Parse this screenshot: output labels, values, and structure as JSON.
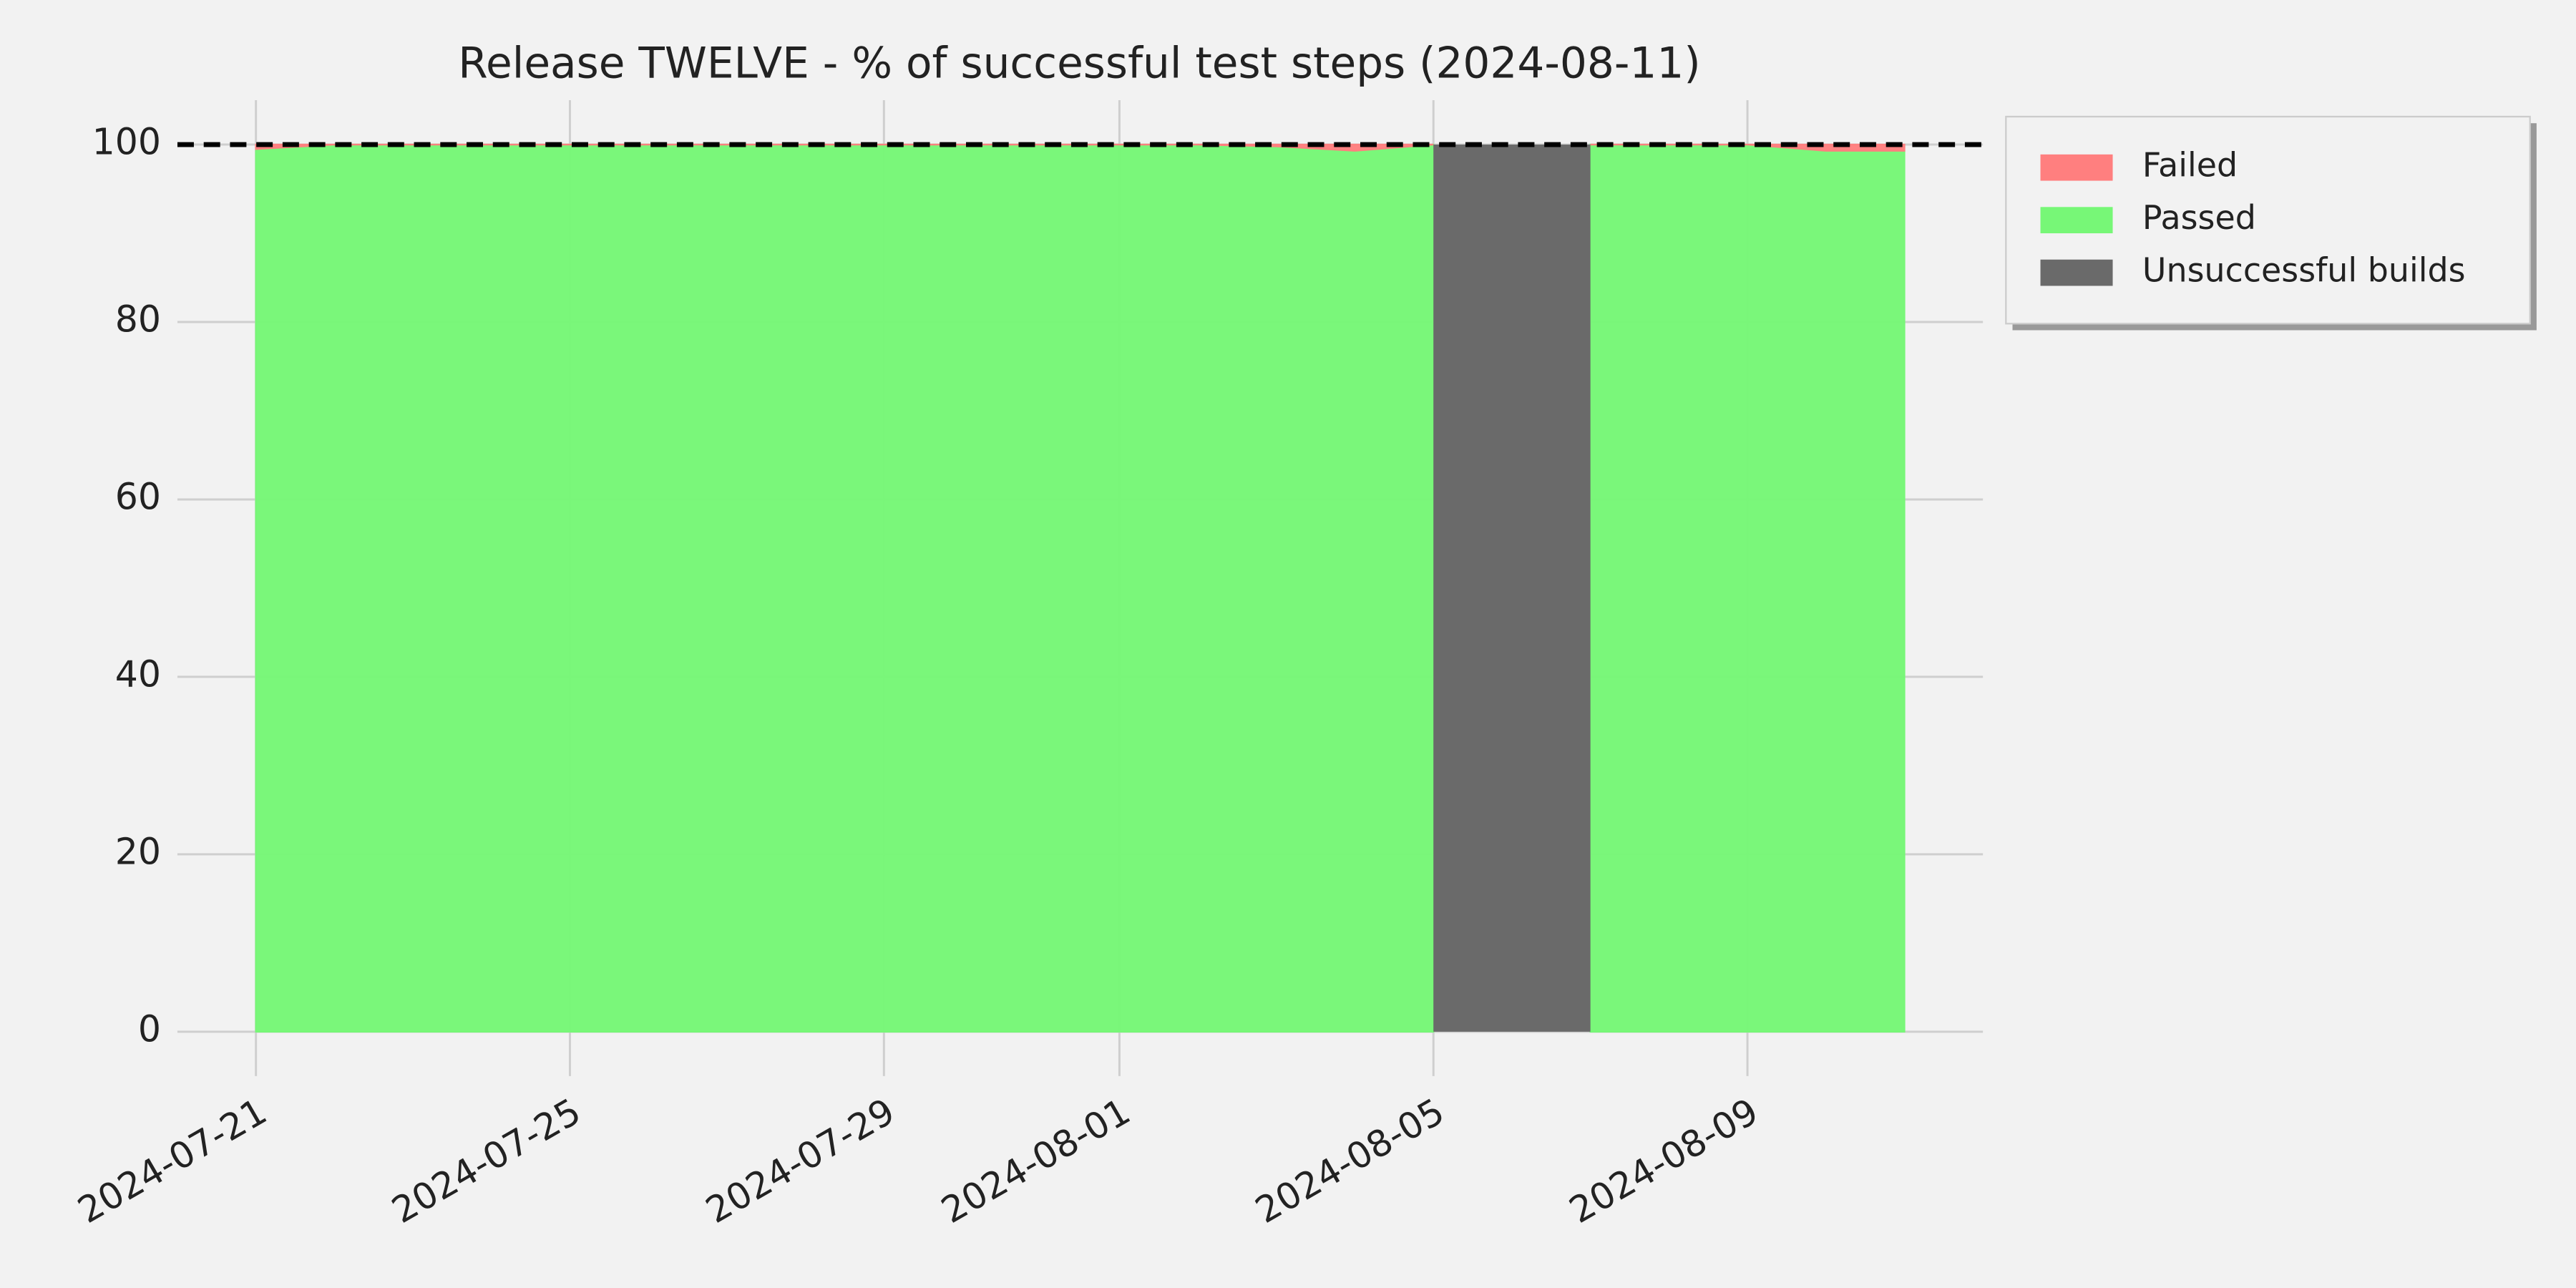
{
  "chart_data": {
    "type": "area",
    "title": "Release TWELVE - % of successful test steps (2024-08-11)",
    "x": [
      "2024-07-21",
      "2024-07-22",
      "2024-07-23",
      "2024-07-24",
      "2024-07-25",
      "2024-07-26",
      "2024-07-27",
      "2024-07-28",
      "2024-07-29",
      "2024-07-30",
      "2024-07-31",
      "2024-08-01",
      "2024-08-02",
      "2024-08-03",
      "2024-08-04",
      "2024-08-05",
      "2024-08-06",
      "2024-08-07",
      "2024-08-08",
      "2024-08-09",
      "2024-08-10",
      "2024-08-11"
    ],
    "series": [
      {
        "name": "Passed",
        "color": "#77f777",
        "values": [
          99.5,
          100,
          100,
          100,
          100,
          100,
          100,
          100,
          100,
          100,
          100,
          100,
          100,
          99.8,
          99.3,
          100,
          null,
          100,
          100,
          100,
          99.3,
          99.3
        ]
      },
      {
        "name": "Failed",
        "color": "#ff7f7f",
        "values": [
          0.5,
          0,
          0,
          0,
          0,
          0,
          0,
          0,
          0,
          0,
          0,
          0,
          0,
          0.2,
          0.7,
          0,
          null,
          0,
          0,
          0,
          0.7,
          0.7
        ]
      }
    ],
    "unsuccessful_builds": {
      "name": "Unsuccessful builds",
      "color": "#6a6a6a",
      "start": "2024-08-05",
      "end": "2024-08-07",
      "value": 100
    },
    "reference_line": {
      "value": 100,
      "style": "dashed"
    },
    "xlim": [
      "2024-07-20",
      "2024-08-12"
    ],
    "xticks": [
      "2024-07-21",
      "2024-07-25",
      "2024-07-29",
      "2024-08-01",
      "2024-08-05",
      "2024-08-09"
    ],
    "ylim": [
      -5,
      105
    ],
    "yticks": [
      0,
      20,
      40,
      60,
      80,
      100
    ],
    "grid": true,
    "legend": "upper right outside"
  }
}
